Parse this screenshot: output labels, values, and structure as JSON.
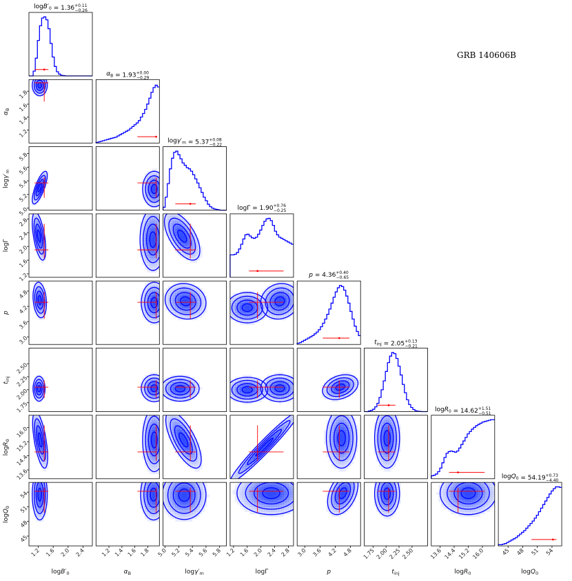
{
  "chart_data": {
    "type": "corner",
    "title": "GRB 140606B",
    "colors": {
      "contour": "#0000ff",
      "marker": "#ff0000",
      "fill": "#1f3cff"
    },
    "parameters": [
      {
        "key": "logB",
        "label": "logB'0",
        "title": "logB'0 = 1.36 (+0.11 / -0.26)",
        "median": 1.36,
        "plus": 0.11,
        "minus": 0.26,
        "range": [
          0.95,
          2.65
        ],
        "ticks": [
          1.2,
          1.6,
          2.0,
          2.4
        ],
        "tick_labels": [
          "1.2",
          "1.6",
          "2.0",
          "2.4"
        ]
      },
      {
        "key": "alpha",
        "label": "αB",
        "title": "αB = 1.93 (+0.00 / -0.29)",
        "median": 1.93,
        "plus": 0.0,
        "minus": 0.29,
        "range": [
          1.0,
          1.98
        ],
        "ticks": [
          1.2,
          1.4,
          1.6,
          1.8
        ],
        "tick_labels": [
          "1.2",
          "1.4",
          "1.6",
          "1.8"
        ]
      },
      {
        "key": "loggm",
        "label": "logγ'm",
        "title": "logγ'm = 5.37 (+0.08 / -0.22)",
        "median": 5.37,
        "plus": 0.08,
        "minus": 0.22,
        "range": [
          4.97,
          5.9
        ],
        "ticks": [
          5.0,
          5.2,
          5.4,
          5.6,
          5.8
        ],
        "tick_labels": [
          "5.0",
          "5.2",
          "5.4",
          "5.6",
          "5.8"
        ]
      },
      {
        "key": "logG",
        "label": "logΓ",
        "title": "logΓ = 1.90 (+0.76 / -0.25)",
        "median": 1.9,
        "plus": 0.76,
        "minus": 0.25,
        "range": [
          1.1,
          2.95
        ],
        "ticks": [
          1.2,
          1.6,
          2.0,
          2.4,
          2.8
        ],
        "tick_labels": [
          "1.2",
          "1.6",
          "2.0",
          "2.4",
          "2.8"
        ]
      },
      {
        "key": "p",
        "label": "p",
        "title": "p = 4.36 (+0.40 / -0.65)",
        "median": 4.36,
        "plus": 0.4,
        "minus": 0.65,
        "range": [
          2.7,
          5.2
        ],
        "ticks": [
          3.0,
          3.6,
          4.2,
          4.8
        ],
        "tick_labels": [
          "3.0",
          "3.6",
          "4.2",
          "4.8"
        ]
      },
      {
        "key": "tinj",
        "label": "tinj",
        "title": "tinj = 2.05 (+0.13 / -0.21)",
        "median": 2.05,
        "plus": 0.13,
        "minus": 0.21,
        "range": [
          1.58,
          2.8
        ],
        "ticks": [
          1.75,
          2.0,
          2.25,
          2.5
        ],
        "tick_labels": [
          "1.75",
          "2.00",
          "2.25",
          "2.50"
        ]
      },
      {
        "key": "logR",
        "label": "logR0",
        "title": "logR0 = 14.62 (+1.51 / -0.51)",
        "median": 14.62,
        "plus": 1.51,
        "minus": 0.51,
        "range": [
          13.1,
          16.7
        ],
        "ticks": [
          13.6,
          14.4,
          15.2,
          16.0
        ],
        "tick_labels": [
          "13.6",
          "14.4",
          "15.2",
          "16.0"
        ]
      },
      {
        "key": "logQ",
        "label": "logQ0",
        "title": "logQ0 = 54.19 (+0.73 / -4.40)",
        "median": 54.19,
        "plus": 0.73,
        "minus": 4.4,
        "range": [
          43.0,
          56.0
        ],
        "ticks": [
          45,
          48,
          51,
          54
        ],
        "tick_labels": [
          "45",
          "48",
          "51",
          "54"
        ]
      }
    ],
    "histograms": [
      {
        "param": "logB",
        "values": [
          0,
          0,
          0.08,
          0.3,
          0.6,
          0.85,
          0.98,
          1.0,
          0.95,
          0.8,
          0.55,
          0.32,
          0.16,
          0.07,
          0.03,
          0.01,
          0.005,
          0,
          0,
          0,
          0,
          0,
          0,
          0,
          0,
          0,
          0,
          0,
          0,
          0
        ]
      },
      {
        "param": "alpha",
        "values": [
          0.01,
          0.02,
          0.03,
          0.04,
          0.05,
          0.06,
          0.07,
          0.08,
          0.09,
          0.1,
          0.12,
          0.14,
          0.16,
          0.18,
          0.2,
          0.22,
          0.25,
          0.28,
          0.31,
          0.34,
          0.38,
          0.44,
          0.5,
          0.57,
          0.66,
          0.76,
          0.86,
          0.94,
          0.98,
          0.95
        ]
      },
      {
        "param": "loggm",
        "values": [
          0.05,
          0.22,
          0.45,
          0.7,
          0.88,
          0.98,
          1.0,
          0.94,
          0.87,
          0.8,
          0.76,
          0.72,
          0.7,
          0.66,
          0.6,
          0.53,
          0.46,
          0.38,
          0.3,
          0.22,
          0.16,
          0.1,
          0.06,
          0.035,
          0.02,
          0.012,
          0.006,
          0,
          0,
          0
        ]
      },
      {
        "param": "logG",
        "values": [
          0.38,
          0.38,
          0.39,
          0.42,
          0.48,
          0.56,
          0.65,
          0.72,
          0.73,
          0.7,
          0.67,
          0.66,
          0.68,
          0.73,
          0.8,
          0.88,
          0.95,
          0.99,
          1.0,
          0.96,
          0.88,
          0.78,
          0.72,
          0.68,
          0.66,
          0.64,
          0.62,
          0.6,
          0.58,
          0.56
        ]
      },
      {
        "param": "p",
        "values": [
          0.02,
          0.03,
          0.05,
          0.07,
          0.09,
          0.11,
          0.13,
          0.15,
          0.18,
          0.21,
          0.25,
          0.3,
          0.36,
          0.43,
          0.51,
          0.6,
          0.7,
          0.8,
          0.89,
          0.96,
          1.0,
          0.98,
          0.92,
          0.82,
          0.7,
          0.56,
          0.43,
          0.31,
          0.22,
          0.15
        ]
      },
      {
        "param": "tinj",
        "values": [
          0,
          0,
          0.01,
          0.02,
          0.04,
          0.08,
          0.14,
          0.24,
          0.37,
          0.52,
          0.68,
          0.83,
          0.94,
          1.0,
          0.98,
          0.9,
          0.77,
          0.62,
          0.46,
          0.32,
          0.2,
          0.12,
          0.07,
          0.035,
          0.015,
          0.006,
          0.002,
          0,
          0,
          0
        ]
      },
      {
        "param": "logR",
        "values": [
          0.05,
          0.06,
          0.08,
          0.12,
          0.18,
          0.27,
          0.36,
          0.43,
          0.46,
          0.47,
          0.46,
          0.45,
          0.47,
          0.52,
          0.58,
          0.64,
          0.7,
          0.76,
          0.8,
          0.84,
          0.87,
          0.9,
          0.92,
          0.94,
          0.96,
          0.97,
          0.98,
          0.99,
          1.0,
          1.0
        ]
      },
      {
        "param": "logQ",
        "values": [
          0.02,
          0.02,
          0.03,
          0.04,
          0.06,
          0.08,
          0.1,
          0.12,
          0.14,
          0.17,
          0.2,
          0.23,
          0.26,
          0.3,
          0.34,
          0.38,
          0.42,
          0.47,
          0.52,
          0.58,
          0.64,
          0.7,
          0.76,
          0.82,
          0.88,
          0.93,
          0.97,
          1.0,
          1.0,
          0.99
        ]
      }
    ],
    "contours": [
      {
        "x": "logB",
        "y": "alpha",
        "blobs": [
          {
            "cx": 1.24,
            "cy": 1.89,
            "sx": 0.1,
            "sy": 0.08,
            "rho": 0
          }
        ]
      },
      {
        "x": "logB",
        "y": "loggm",
        "blobs": [
          {
            "cx": 1.24,
            "cy": 5.3,
            "sx": 0.1,
            "sy": 0.12,
            "rho": 0.75
          }
        ]
      },
      {
        "x": "logB",
        "y": "logG",
        "blobs": [
          {
            "cx": 1.22,
            "cy": 2.3,
            "sx": 0.09,
            "sy": 0.35,
            "rho": -0.55
          }
        ]
      },
      {
        "x": "logB",
        "y": "p",
        "blobs": [
          {
            "cx": 1.24,
            "cy": 4.45,
            "sx": 0.09,
            "sy": 0.35,
            "rho": -0.2
          }
        ]
      },
      {
        "x": "logB",
        "y": "tinj",
        "blobs": [
          {
            "cx": 1.22,
            "cy": 2.02,
            "sx": 0.08,
            "sy": 0.12,
            "rho": 0
          }
        ]
      },
      {
        "x": "logB",
        "y": "logR",
        "blobs": [
          {
            "cx": 1.25,
            "cy": 15.3,
            "sx": 0.1,
            "sy": 0.8,
            "rho": -0.6
          }
        ]
      },
      {
        "x": "logB",
        "y": "logQ",
        "blobs": [
          {
            "cx": 1.24,
            "cy": 53.5,
            "sx": 0.1,
            "sy": 2.6,
            "rho": 0
          }
        ]
      },
      {
        "x": "alpha",
        "y": "loggm",
        "blobs": [
          {
            "cx": 1.9,
            "cy": 5.28,
            "sx": 0.09,
            "sy": 0.13,
            "rho": 0
          }
        ]
      },
      {
        "x": "alpha",
        "y": "logG",
        "blobs": [
          {
            "cx": 1.88,
            "cy": 2.2,
            "sx": 0.1,
            "sy": 0.45,
            "rho": 0
          }
        ]
      },
      {
        "x": "alpha",
        "y": "p",
        "blobs": [
          {
            "cx": 1.9,
            "cy": 4.35,
            "sx": 0.1,
            "sy": 0.4,
            "rho": 0
          }
        ]
      },
      {
        "x": "alpha",
        "y": "tinj",
        "blobs": [
          {
            "cx": 1.9,
            "cy": 2.03,
            "sx": 0.1,
            "sy": 0.13,
            "rho": 0
          }
        ]
      },
      {
        "x": "alpha",
        "y": "logR",
        "blobs": [
          {
            "cx": 1.9,
            "cy": 15.3,
            "sx": 0.09,
            "sy": 0.9,
            "rho": 0
          }
        ]
      },
      {
        "x": "alpha",
        "y": "logQ",
        "blobs": [
          {
            "cx": 1.89,
            "cy": 53.5,
            "sx": 0.1,
            "sy": 2.6,
            "rho": 0
          }
        ]
      },
      {
        "x": "loggm",
        "y": "logG",
        "blobs": [
          {
            "cx": 5.25,
            "cy": 2.3,
            "sx": 0.13,
            "sy": 0.35,
            "rho": -0.6
          }
        ]
      },
      {
        "x": "loggm",
        "y": "p",
        "blobs": [
          {
            "cx": 5.3,
            "cy": 4.4,
            "sx": 0.15,
            "sy": 0.35,
            "rho": -0.1
          }
        ]
      },
      {
        "x": "loggm",
        "y": "tinj",
        "blobs": [
          {
            "cx": 5.22,
            "cy": 2.02,
            "sx": 0.14,
            "sy": 0.12,
            "rho": 0
          }
        ]
      },
      {
        "x": "loggm",
        "y": "logR",
        "blobs": [
          {
            "cx": 5.27,
            "cy": 15.3,
            "sx": 0.13,
            "sy": 0.8,
            "rho": -0.7
          }
        ]
      },
      {
        "x": "loggm",
        "y": "logQ",
        "blobs": [
          {
            "cx": 5.28,
            "cy": 53.4,
            "sx": 0.16,
            "sy": 2.5,
            "rho": 0
          }
        ]
      },
      {
        "x": "logG",
        "y": "p",
        "blobs": [
          {
            "cx": 2.55,
            "cy": 4.4,
            "sx": 0.28,
            "sy": 0.35,
            "rho": 0.1
          },
          {
            "cx": 1.6,
            "cy": 4.15,
            "sx": 0.3,
            "sy": 0.3,
            "rho": 0
          }
        ]
      },
      {
        "x": "logG",
        "y": "tinj",
        "blobs": [
          {
            "cx": 2.55,
            "cy": 2.03,
            "sx": 0.28,
            "sy": 0.13,
            "rho": 0
          },
          {
            "cx": 1.6,
            "cy": 2.0,
            "sx": 0.3,
            "sy": 0.12,
            "rho": 0
          }
        ]
      },
      {
        "x": "logG",
        "y": "logR",
        "blobs": [
          {
            "cx": 2.1,
            "cy": 14.9,
            "sx": 0.5,
            "sy": 1.0,
            "rho": 0.97
          }
        ]
      },
      {
        "x": "logG",
        "y": "logQ",
        "blobs": [
          {
            "cx": 2.3,
            "cy": 53.8,
            "sx": 0.5,
            "sy": 2.2,
            "rho": 0
          }
        ]
      },
      {
        "x": "p",
        "y": "tinj",
        "blobs": [
          {
            "cx": 4.4,
            "cy": 2.05,
            "sx": 0.35,
            "sy": 0.12,
            "rho": 0.3
          }
        ]
      },
      {
        "x": "p",
        "y": "logR",
        "blobs": [
          {
            "cx": 4.45,
            "cy": 15.4,
            "sx": 0.3,
            "sy": 0.85,
            "rho": 0
          }
        ]
      },
      {
        "x": "p",
        "y": "logQ",
        "blobs": [
          {
            "cx": 4.5,
            "cy": 53.8,
            "sx": 0.3,
            "sy": 2.2,
            "rho": 0.4
          }
        ]
      },
      {
        "x": "tinj",
        "y": "logR",
        "blobs": [
          {
            "cx": 2.02,
            "cy": 15.4,
            "sx": 0.12,
            "sy": 0.85,
            "rho": 0
          }
        ]
      },
      {
        "x": "tinj",
        "y": "logQ",
        "blobs": [
          {
            "cx": 2.02,
            "cy": 53.7,
            "sx": 0.12,
            "sy": 2.3,
            "rho": 0
          }
        ]
      },
      {
        "x": "logR",
        "y": "logQ",
        "blobs": [
          {
            "cx": 15.2,
            "cy": 53.8,
            "sx": 0.8,
            "sy": 2.2,
            "rho": 0
          }
        ]
      }
    ],
    "contour_levels": [
      0.5,
      1.0,
      1.5,
      2.0
    ]
  }
}
